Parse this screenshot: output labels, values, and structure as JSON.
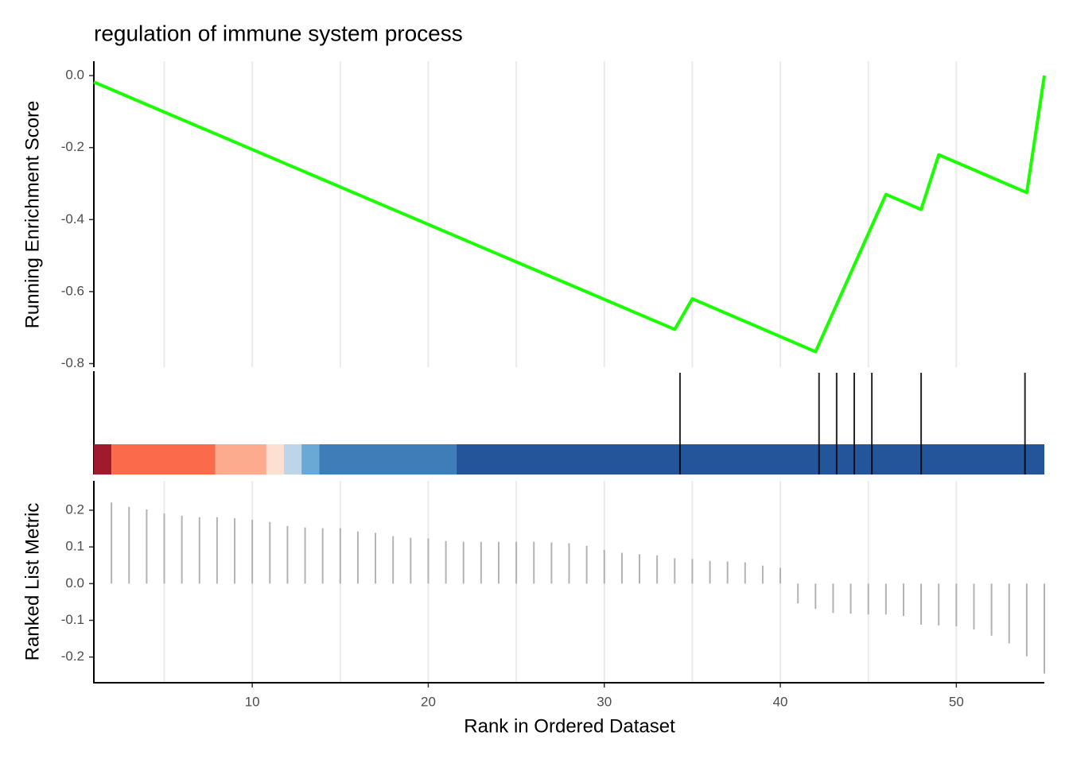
{
  "chart_data": [
    {
      "type": "line",
      "title": "regulation of immune system process",
      "ylabel": "Running Enrichment Score",
      "x": [
        1,
        34,
        35,
        42,
        46,
        48,
        49,
        54,
        55
      ],
      "series": [
        {
          "color": "#1aff00",
          "values": [
            -0.018,
            -0.705,
            -0.62,
            -0.767,
            -0.33,
            -0.372,
            -0.22,
            -0.325,
            0.0
          ]
        }
      ],
      "xlim": [
        1,
        55
      ],
      "ylim": [
        -0.81,
        0.04
      ],
      "yticks": [
        {
          "value": 0,
          "label": "0.0"
        },
        -0.2,
        -0.4,
        -0.6,
        -0.8
      ],
      "xgrid": [
        5,
        10,
        15,
        20,
        25,
        30,
        35,
        40,
        45,
        50
      ]
    },
    {
      "type": "hits",
      "x": [
        34.3,
        42.2,
        43.2,
        44.2,
        45.2,
        48.0,
        53.9
      ],
      "color": "#000000",
      "bins": [
        1,
        2,
        7.9,
        10.8,
        11.8,
        12.8,
        13.8,
        21.6,
        55
      ],
      "bin_colors": [
        "#9e1a2c",
        "#fb6a4a",
        "#fcab8e",
        "#fee0d2",
        "#bcd5ea",
        "#6aa9d6",
        "#3f7db8",
        "#24549a"
      ],
      "xlim": [
        1,
        55
      ]
    },
    {
      "type": "bar",
      "ylabel": "Ranked List Metric",
      "xlabel": "Rank in Ordered Dataset",
      "x": [
        2,
        3,
        4,
        5,
        6,
        7,
        8,
        9,
        10,
        11,
        12,
        13,
        14,
        15,
        16,
        17,
        18,
        19,
        20,
        21,
        22,
        23,
        24,
        25,
        26,
        27,
        28,
        29,
        30,
        31,
        32,
        33,
        34,
        35,
        36,
        37,
        38,
        39,
        40,
        41,
        42,
        43,
        44,
        45,
        46,
        47,
        48,
        49,
        50,
        51,
        52,
        53,
        54,
        55
      ],
      "values": [
        0.221,
        0.209,
        0.202,
        0.191,
        0.185,
        0.181,
        0.181,
        0.178,
        0.174,
        0.168,
        0.157,
        0.153,
        0.151,
        0.151,
        0.142,
        0.138,
        0.129,
        0.125,
        0.123,
        0.116,
        0.114,
        0.114,
        0.114,
        0.114,
        0.114,
        0.112,
        0.11,
        0.103,
        0.092,
        0.084,
        0.08,
        0.077,
        0.069,
        0.067,
        0.062,
        0.06,
        0.058,
        0.049,
        0.043,
        -0.054,
        -0.069,
        -0.08,
        -0.082,
        -0.084,
        -0.084,
        -0.088,
        -0.112,
        -0.114,
        -0.116,
        -0.125,
        -0.142,
        -0.163,
        -0.198,
        -0.245
      ],
      "color": "#b3b3b3",
      "xlim": [
        1,
        55
      ],
      "ylim": [
        -0.27,
        0.28
      ],
      "yticks": [
        0.2,
        0.1,
        {
          "value": 0,
          "label": "0.0"
        },
        -0.1,
        -0.2
      ],
      "xticks": [
        10,
        20,
        30,
        40,
        50
      ],
      "xgrid": [
        5,
        10,
        15,
        20,
        25,
        30,
        35,
        40,
        45,
        50
      ]
    }
  ]
}
